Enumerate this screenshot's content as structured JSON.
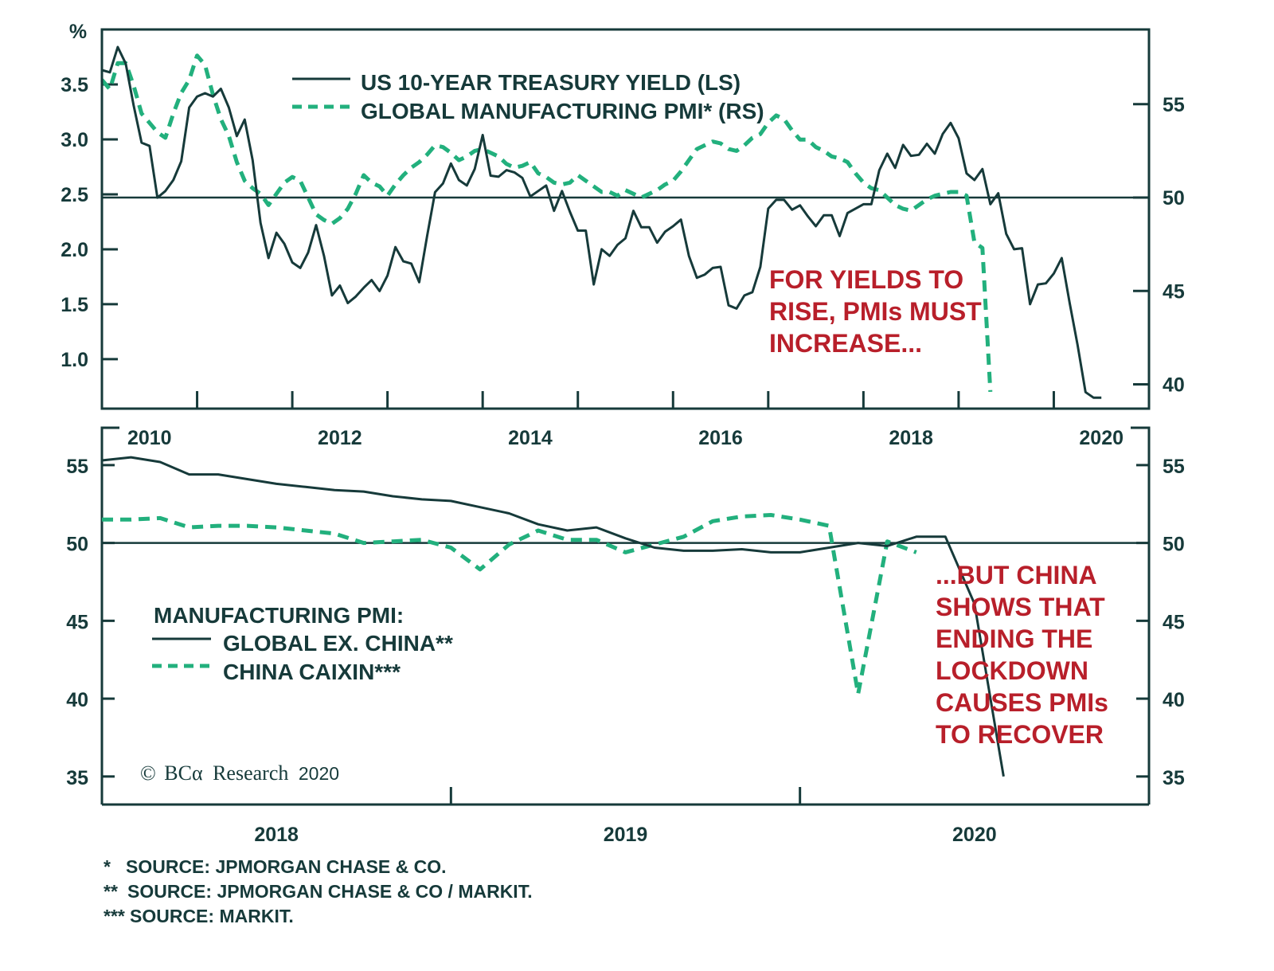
{
  "colors": {
    "solid": "#163a3a",
    "dashed": "#22b07d",
    "annotation": "#b81f2a"
  },
  "chart_data": [
    {
      "type": "line",
      "panel": "top",
      "title": "",
      "left_axis": {
        "label": "%",
        "ticks": [
          "1.0",
          "1.5",
          "2.0",
          "2.5",
          "3.0",
          "3.5"
        ],
        "tick_values": [
          1.0,
          1.5,
          2.0,
          2.5,
          3.0,
          3.5
        ],
        "ylim": [
          0.55,
          4.0
        ]
      },
      "right_axis": {
        "ticks": [
          "40",
          "45",
          "50",
          "55"
        ],
        "tick_values": [
          40,
          45,
          50,
          55
        ],
        "ylim": [
          38.7,
          59.0
        ]
      },
      "x_axis": {
        "labels": [
          "2010",
          "2012",
          "2014",
          "2016",
          "2018",
          "2020"
        ],
        "start": "2010-01",
        "frequency": "monthly",
        "xlim_years": [
          2010.0,
          2021.0
        ]
      },
      "reference_line": {
        "axis": "right",
        "value": 50
      },
      "legend": {
        "placement": "top-center",
        "items": [
          {
            "label": "US 10-YEAR TREASURY YIELD (LS)",
            "style": "solid"
          },
          {
            "label": "GLOBAL MANUFACTURING PMI* (RS)",
            "style": "dashed"
          }
        ]
      },
      "annotation": [
        "FOR YIELDS TO",
        "RISE, PMIs MUST",
        "INCREASE..."
      ],
      "series": [
        {
          "name": "US 10-YEAR TREASURY YIELD (LS)",
          "axis": "left",
          "style": "solid",
          "values": [
            3.63,
            3.61,
            3.84,
            3.69,
            3.31,
            2.97,
            2.94,
            2.47,
            2.53,
            2.63,
            2.8,
            3.29,
            3.39,
            3.42,
            3.39,
            3.46,
            3.29,
            3.03,
            3.18,
            2.81,
            2.24,
            1.92,
            2.15,
            2.05,
            1.88,
            1.83,
            1.97,
            2.22,
            1.94,
            1.58,
            1.67,
            1.51,
            1.57,
            1.65,
            1.72,
            1.62,
            1.76,
            2.02,
            1.89,
            1.87,
            1.7,
            2.12,
            2.52,
            2.6,
            2.78,
            2.63,
            2.58,
            2.73,
            3.04,
            2.67,
            2.66,
            2.72,
            2.7,
            2.65,
            2.48,
            2.53,
            2.58,
            2.35,
            2.53,
            2.34,
            2.17,
            2.17,
            1.68,
            2.0,
            1.94,
            2.04,
            2.1,
            2.35,
            2.2,
            2.2,
            2.06,
            2.16,
            2.21,
            2.27,
            1.94,
            1.74,
            1.77,
            1.83,
            1.84,
            1.49,
            1.46,
            1.58,
            1.61,
            1.84,
            2.37,
            2.45,
            2.45,
            2.36,
            2.4,
            2.3,
            2.21,
            2.31,
            2.31,
            2.12,
            2.33,
            2.37,
            2.41,
            2.41,
            2.72,
            2.87,
            2.74,
            2.95,
            2.85,
            2.86,
            2.96,
            2.87,
            3.05,
            3.15,
            3.01,
            2.69,
            2.63,
            2.73,
            2.41,
            2.51,
            2.14,
            2.0,
            2.01,
            1.5,
            1.68,
            1.69,
            1.78,
            1.92,
            1.51,
            1.13,
            0.7,
            0.65,
            0.65
          ]
        },
        {
          "name": "GLOBAL MANUFACTURING PMI* (RS)",
          "axis": "right",
          "style": "dashed",
          "values": [
            56.3,
            55.8,
            57.2,
            57.2,
            56.0,
            54.5,
            54.0,
            53.5,
            53.2,
            54.5,
            55.6,
            56.3,
            57.6,
            57.1,
            55.5,
            54.2,
            53.3,
            51.9,
            50.9,
            50.5,
            50.2,
            49.6,
            50.2,
            50.8,
            51.1,
            50.9,
            50.0,
            49.1,
            48.8,
            48.6,
            48.9,
            49.4,
            50.2,
            51.2,
            50.8,
            50.6,
            50.1,
            50.7,
            51.2,
            51.6,
            51.9,
            52.3,
            52.8,
            52.7,
            52.4,
            52.0,
            52.2,
            52.5,
            52.6,
            52.4,
            52.2,
            51.8,
            51.6,
            51.7,
            51.9,
            51.3,
            51.1,
            50.8,
            50.7,
            50.8,
            51.2,
            50.9,
            50.6,
            50.3,
            50.3,
            50.1,
            50.4,
            50.2,
            50.0,
            50.2,
            50.4,
            50.7,
            50.9,
            51.4,
            52.0,
            52.6,
            52.8,
            53.0,
            52.9,
            52.6,
            52.5,
            52.8,
            53.2,
            53.4,
            54.0,
            54.4,
            54.2,
            53.6,
            53.1,
            53.1,
            52.7,
            52.5,
            52.2,
            52.1,
            51.9,
            51.3,
            50.8,
            50.5,
            50.4,
            50.0,
            49.6,
            49.4,
            49.3,
            49.6,
            49.9,
            50.1,
            50.2,
            50.3,
            50.3,
            50.1,
            47.6,
            47.3,
            39.6
          ]
        }
      ]
    },
    {
      "type": "line",
      "panel": "bottom",
      "title": "",
      "left_axis": {
        "ticks": [
          "35",
          "40",
          "45",
          "50",
          "55"
        ],
        "tick_values": [
          35,
          40,
          45,
          50,
          55
        ],
        "ylim": [
          33.2,
          57.4
        ]
      },
      "right_axis": {
        "ticks": [
          "35",
          "40",
          "45",
          "50",
          "55"
        ],
        "tick_values": [
          35,
          40,
          45,
          50,
          55
        ],
        "ylim": [
          33.2,
          57.4
        ]
      },
      "x_axis": {
        "labels": [
          "2018",
          "2019",
          "2020"
        ],
        "start": "2017-12",
        "frequency": "monthly",
        "xlim_months": [
          0,
          36
        ]
      },
      "reference_line": {
        "axis": "left",
        "value": 50
      },
      "legend": {
        "placement": "middle-left",
        "title": "MANUFACTURING PMI:",
        "items": [
          {
            "label": "GLOBAL EX. CHINA**",
            "style": "solid"
          },
          {
            "label": "CHINA CAIXIN***",
            "style": "dashed"
          }
        ]
      },
      "annotation": [
        "...BUT CHINA",
        "SHOWS THAT",
        "ENDING THE",
        "LOCKDOWN",
        "CAUSES PMIs",
        "TO RECOVER"
      ],
      "series": [
        {
          "name": "GLOBAL EX. CHINA**",
          "style": "solid",
          "values": [
            55.3,
            55.5,
            55.2,
            54.4,
            54.4,
            54.1,
            53.8,
            53.6,
            53.4,
            53.3,
            53.0,
            52.8,
            52.7,
            52.3,
            51.9,
            51.2,
            50.8,
            51.0,
            50.3,
            49.7,
            49.5,
            49.5,
            49.6,
            49.4,
            49.4,
            49.7,
            50.0,
            49.8,
            50.4,
            50.4,
            46.1,
            35.0
          ]
        },
        {
          "name": "CHINA CAIXIN***",
          "style": "dashed",
          "values": [
            51.5,
            51.5,
            51.6,
            51.0,
            51.1,
            51.1,
            51.0,
            50.8,
            50.6,
            50.0,
            50.1,
            50.2,
            49.7,
            48.3,
            49.9,
            50.8,
            50.2,
            50.2,
            49.4,
            49.9,
            50.4,
            51.4,
            51.7,
            51.8,
            51.5,
            51.1,
            40.3,
            50.1,
            49.4
          ]
        }
      ]
    }
  ],
  "top": {
    "unit_label": "%",
    "left_ticks": [
      "3.5",
      "3.0",
      "2.5",
      "2.0",
      "1.5",
      "1.0"
    ],
    "right_ticks": [
      "55",
      "50",
      "45",
      "40"
    ],
    "year_labels": [
      "2010",
      "2012",
      "2014",
      "2016",
      "2018",
      "2020"
    ],
    "legend": [
      "US 10-YEAR TREASURY YIELD (LS)",
      "GLOBAL MANUFACTURING PMI* (RS)"
    ],
    "note": [
      "FOR YIELDS TO",
      "RISE, PMIs MUST",
      "INCREASE..."
    ]
  },
  "bottom": {
    "left_ticks": [
      "55",
      "50",
      "45",
      "40",
      "35"
    ],
    "right_ticks": [
      "55",
      "50",
      "45",
      "40",
      "35"
    ],
    "year_labels": [
      "2018",
      "2019",
      "2020"
    ],
    "legend_title": "MANUFACTURING PMI:",
    "legend": [
      "GLOBAL EX. CHINA**",
      "CHINA CAIXIN***"
    ],
    "note": [
      "...BUT CHINA",
      "SHOWS THAT",
      "ENDING THE",
      "LOCKDOWN",
      "CAUSES PMIs",
      "TO RECOVER"
    ],
    "copyright_mark": "©",
    "copyright_brand": "BCα",
    "copyright_word": "Research",
    "copyright_year": "2020"
  },
  "footnotes": [
    {
      "mark": "*",
      "text": "SOURCE: JPMORGAN CHASE & CO."
    },
    {
      "mark": "**",
      "text": "SOURCE: JPMORGAN CHASE & CO / MARKIT."
    },
    {
      "mark": "***",
      "text": "SOURCE: MARKIT."
    }
  ]
}
